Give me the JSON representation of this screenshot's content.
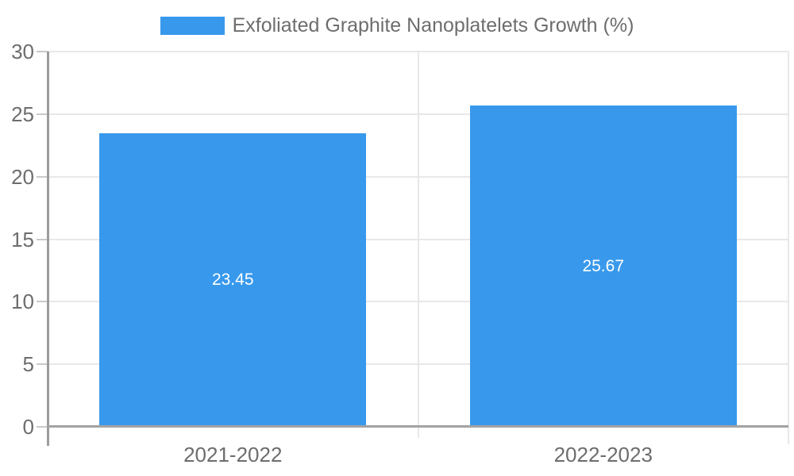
{
  "chart_data": {
    "type": "bar",
    "title": "Exfoliated Graphite Nanoplatelets Growth (%)",
    "legend_position": "top",
    "categories": [
      "2021-2022",
      "2022-2023"
    ],
    "series": [
      {
        "name": "Exfoliated Graphite Nanoplatelets Growth (%)",
        "values": [
          23.45,
          25.67
        ]
      }
    ],
    "value_labels": [
      "23.45",
      "25.67"
    ],
    "xlabel": "",
    "ylabel": "",
    "ylim": [
      0,
      30
    ],
    "yticks": [
      0,
      5,
      10,
      15,
      20,
      25,
      30
    ],
    "grid": true,
    "colors": {
      "bar": "#3899ec",
      "bar_value_label": "#ffffff",
      "axis_label": "#6d6d6d",
      "gridline": "#e8e8e8",
      "zero_line": "#a3a3a3",
      "axis_line": "#9c9c9c",
      "tick_mark": "#c9c9c9"
    },
    "layout": {
      "bar_fraction_of_category": 0.72
    }
  }
}
